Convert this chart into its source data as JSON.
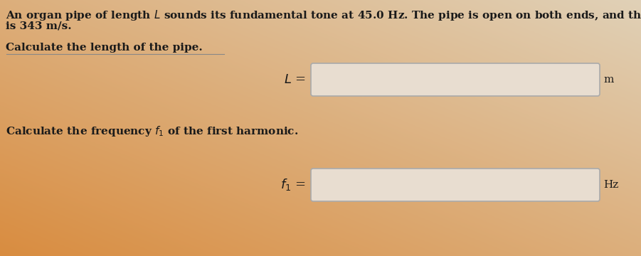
{
  "bg_color_topleft": [
    0.85,
    0.55,
    0.25
  ],
  "bg_color_bottomright": [
    0.88,
    0.82,
    0.72
  ],
  "box_facecolor": "#e8ddd0",
  "box_edgecolor": "#aaaaaa",
  "text_color": "#1a1a1a",
  "title_line1": "An organ pipe of length $L$ sounds its fundamental tone at 45.0 Hz. The pipe is open on both ends, and the speed of sound in air",
  "title_line2": "is 343 m/s.",
  "question1": "Calculate the length of the pipe.",
  "label1": "$L$ =",
  "unit1": "m",
  "question2": "Calculate the frequency $f_1$ of the first harmonic.",
  "label2": "$f_1$ =",
  "unit2": "Hz",
  "font_size_title": 11.0,
  "font_size_question": 11.0,
  "font_size_label": 13,
  "font_size_unit": 11
}
